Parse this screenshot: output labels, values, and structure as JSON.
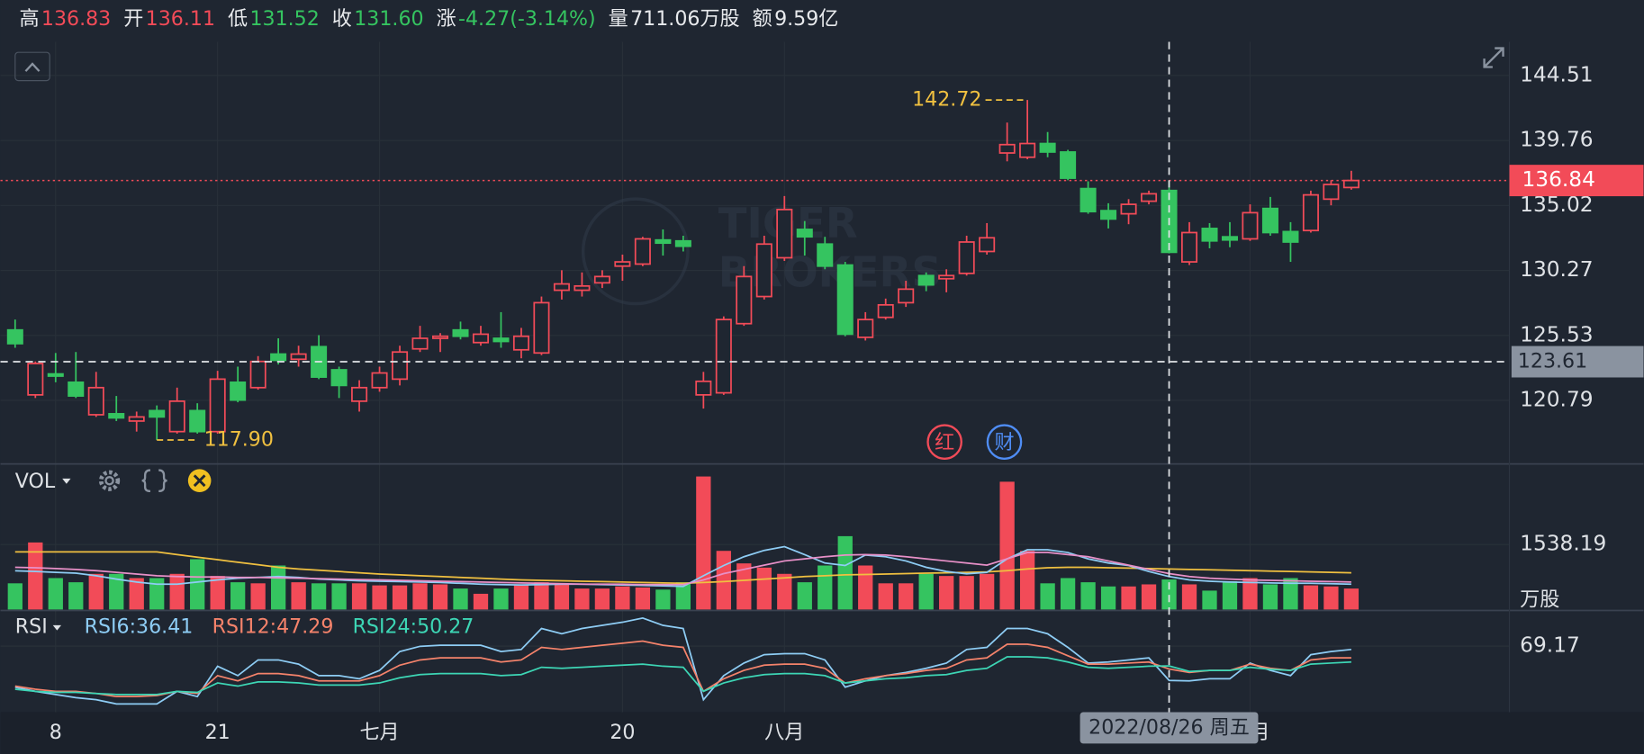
{
  "header": {
    "items": [
      {
        "label": "高",
        "value": "136.83",
        "color": "#f24b58"
      },
      {
        "label": "开",
        "value": "136.11",
        "color": "#f24b58"
      },
      {
        "label": "低",
        "value": "131.52",
        "color": "#35c460"
      },
      {
        "label": "收",
        "value": "131.60",
        "color": "#35c460"
      },
      {
        "label": "涨",
        "value": "-4.27(-3.14%)",
        "color": "#35c460"
      },
      {
        "label": "量",
        "value": "711.06万股",
        "color": "#e8eaed"
      },
      {
        "label": "额",
        "value": "9.59亿",
        "color": "#e8eaed"
      }
    ]
  },
  "chart_data": [
    {
      "type": "candlestick",
      "categories": [
        null,
        null,
        "8",
        null,
        null,
        null,
        null,
        null,
        null,
        null,
        "21",
        null,
        null,
        null,
        null,
        null,
        null,
        null,
        "七月",
        null,
        null,
        null,
        null,
        null,
        null,
        null,
        null,
        null,
        null,
        null,
        "20",
        null,
        null,
        null,
        null,
        null,
        null,
        null,
        "八月",
        null,
        null,
        null,
        null,
        null,
        null,
        null,
        null,
        null,
        null,
        null,
        null,
        null,
        null,
        null,
        null,
        null,
        null,
        null,
        null,
        null,
        null,
        "九月",
        null,
        null,
        null,
        null,
        null
      ],
      "open": [
        125.93,
        121.19,
        122.72,
        122.11,
        119.74,
        119.81,
        119.28,
        120.04,
        118.51,
        120.04,
        118.51,
        122.11,
        121.72,
        124.17,
        123.79,
        124.71,
        123.02,
        120.73,
        121.72,
        122.34,
        124.55,
        125.32,
        125.93,
        125.01,
        125.32,
        124.48,
        124.25,
        128.83,
        128.83,
        129.37,
        130.59,
        130.74,
        132.5,
        132.43,
        121.19,
        121.34,
        126.39,
        128.37,
        131.2,
        133.27,
        132.2,
        130.67,
        125.39,
        126.85,
        127.92,
        129.9,
        129.67,
        130.06,
        131.66,
        138.85,
        138.54,
        139.54,
        138.92,
        136.25,
        134.64,
        134.41,
        135.33,
        136.11,
        130.9,
        133.34,
        132.73,
        132.58,
        134.8,
        133.11,
        133.19,
        135.48,
        136.33
      ],
      "high": [
        126.69,
        123.63,
        124.25,
        124.32,
        122.87,
        121.11,
        119.97,
        120.42,
        121.72,
        120.58,
        122.95,
        123.25,
        124.02,
        125.32,
        124.78,
        125.55,
        123.25,
        122.26,
        123.25,
        124.78,
        126.23,
        125.7,
        126.54,
        126.23,
        127.23,
        126.08,
        128.37,
        130.29,
        130.13,
        130.29,
        131.43,
        132.73,
        133.27,
        132.81,
        122.87,
        126.92,
        130.59,
        132.81,
        135.71,
        133.88,
        132.73,
        130.9,
        127.23,
        128.22,
        129.52,
        130.13,
        130.36,
        132.81,
        133.73,
        141.07,
        142.72,
        140.38,
        139.08,
        136.78,
        135.18,
        135.48,
        136.1,
        136.83,
        133.8,
        133.73,
        133.8,
        135.1,
        135.64,
        133.8,
        136.1,
        136.86,
        137.55
      ],
      "low": [
        124.63,
        120.96,
        122.11,
        120.96,
        119.58,
        119.28,
        118.51,
        117.9,
        118.36,
        118.36,
        118.36,
        120.65,
        121.57,
        123.41,
        123.25,
        122.34,
        120.96,
        119.97,
        121.42,
        121.88,
        124.32,
        124.32,
        125.24,
        124.78,
        124.63,
        123.86,
        124.09,
        128.15,
        128.37,
        128.99,
        129.52,
        130.59,
        131.36,
        131.66,
        120.19,
        121.19,
        126.23,
        128.15,
        130.97,
        131.36,
        130.36,
        125.47,
        125.16,
        126.69,
        127.61,
        128.76,
        128.68,
        129.9,
        131.43,
        138.24,
        138.39,
        138.54,
        136.86,
        134.41,
        133.34,
        133.65,
        135.1,
        131.52,
        130.67,
        131.89,
        131.97,
        132.43,
        132.81,
        130.9,
        133.04,
        135.03,
        136.17
      ],
      "close": [
        124.93,
        123.48,
        122.56,
        121.11,
        121.72,
        119.51,
        119.58,
        119.58,
        120.73,
        118.51,
        122.34,
        120.81,
        123.63,
        123.71,
        124.17,
        122.49,
        121.88,
        121.72,
        122.79,
        124.32,
        125.32,
        125.47,
        125.47,
        125.62,
        125.09,
        125.47,
        127.92,
        129.29,
        129.14,
        129.83,
        130.9,
        132.58,
        132.27,
        132.04,
        122.18,
        126.69,
        129.83,
        132.2,
        134.72,
        132.73,
        130.59,
        125.62,
        126.69,
        127.76,
        128.91,
        129.22,
        129.9,
        132.35,
        132.66,
        139.46,
        139.54,
        138.92,
        137.01,
        134.57,
        134.03,
        135.1,
        135.87,
        131.6,
        133.04,
        132.43,
        132.5,
        134.49,
        133.04,
        132.35,
        135.79,
        136.55,
        136.84
      ],
      "up_color": "#f24b58",
      "down_color": "#35c460",
      "ylim": [
        116.15,
        146.96
      ],
      "yticks": [
        144.51,
        139.76,
        135.02,
        130.27,
        125.53,
        120.79
      ],
      "annotations": [
        {
          "text": "142.72"
        },
        {
          "text": "117.90"
        }
      ],
      "last_price": 136.84,
      "crosshair_price": 123.61,
      "crosshair_label": "2022/08/26 周五",
      "markers": [
        "红",
        "财"
      ],
      "watermark": [
        "TIGER",
        "BROKERS"
      ]
    },
    {
      "type": "bar",
      "title": "VOL",
      "unit": "万股",
      "values": [
        620,
        1588,
        744,
        645,
        844,
        844,
        744,
        744,
        844,
        1191,
        794,
        645,
        620,
        1042,
        645,
        620,
        620,
        620,
        571,
        571,
        620,
        595,
        496,
        372,
        496,
        595,
        645,
        620,
        496,
        496,
        546,
        521,
        471,
        645,
        3151,
        1389,
        1092,
        992,
        844,
        645,
        1042,
        1737,
        1042,
        620,
        620,
        844,
        794,
        794,
        844,
        3027,
        1389,
        620,
        744,
        645,
        546,
        546,
        595,
        711.06,
        595,
        447,
        670,
        744,
        595,
        744,
        571,
        546,
        496
      ],
      "lines": [
        {
          "color": "#f0c040",
          "values": [
            1365,
            1365,
            1365,
            1365,
            1365,
            1365,
            1365,
            1365,
            1300,
            1240,
            1180,
            1120,
            1060,
            1000,
            960,
            930,
            900,
            870,
            840,
            820,
            800,
            780,
            760,
            740,
            720,
            700,
            690,
            680,
            670,
            660,
            650,
            640,
            630,
            620,
            640,
            660,
            690,
            720,
            750,
            780,
            800,
            820,
            830,
            840,
            850,
            860,
            870,
            880,
            890,
            920,
            960,
            990,
            1000,
            1000,
            990,
            980,
            970,
            960,
            950,
            940,
            930,
            920,
            910,
            900,
            890,
            880,
            870
          ]
        },
        {
          "color": "#8ecdf5",
          "values": [
            918,
            900,
            880,
            860,
            800,
            720,
            650,
            600,
            600,
            650,
            700,
            740,
            760,
            780,
            760,
            720,
            700,
            680,
            670,
            660,
            650,
            640,
            620,
            600,
            590,
            580,
            590,
            600,
            600,
            590,
            580,
            570,
            560,
            546,
            800,
            1042,
            1250,
            1400,
            1489,
            1300,
            1100,
            1042,
            1290,
            1250,
            1150,
            1000,
            900,
            844,
            880,
            1200,
            1414,
            1414,
            1350,
            1200,
            1100,
            1042,
            900,
            780,
            700,
            670,
            650,
            640,
            630,
            620,
            620,
            610,
            600
          ]
        },
        {
          "color": "#e890c8",
          "values": [
            1000,
            990,
            970,
            950,
            920,
            880,
            840,
            800,
            780,
            770,
            770,
            760,
            760,
            750,
            740,
            730,
            720,
            710,
            700,
            690,
            680,
            670,
            660,
            650,
            640,
            630,
            620,
            610,
            600,
            600,
            600,
            590,
            590,
            590,
            700,
            850,
            950,
            1050,
            1150,
            1200,
            1250,
            1290,
            1300,
            1290,
            1250,
            1200,
            1150,
            1100,
            1050,
            1200,
            1350,
            1350,
            1300,
            1250,
            1150,
            1050,
            950,
            850,
            780,
            740,
            720,
            700,
            690,
            680,
            670,
            660,
            650
          ]
        }
      ],
      "ylim": [
        0,
        3424
      ],
      "yticks": [
        1538.19
      ]
    },
    {
      "type": "line",
      "title": "RSI",
      "series": [
        {
          "name": "RSI6:36.41",
          "color": "#8ecdf5",
          "values": [
            30,
            26,
            23,
            20,
            18,
            14,
            14,
            14,
            26,
            21,
            50,
            41,
            56,
            56,
            52,
            41,
            41,
            38,
            46,
            64,
            69,
            70,
            70,
            70,
            64,
            66,
            86,
            81,
            86,
            89,
            92,
            96,
            89,
            86,
            18,
            41,
            53,
            61,
            62,
            62,
            56,
            30,
            36,
            41,
            44,
            48,
            53,
            66,
            68,
            86,
            86,
            81,
            68,
            53,
            54,
            56,
            58,
            36.41,
            36,
            38,
            38,
            53,
            46,
            41,
            61,
            64,
            66
          ]
        },
        {
          "name": "RSI12:47.29",
          "color": "#f5836b",
          "values": [
            31,
            28,
            26,
            26,
            24,
            21,
            21,
            22,
            26,
            24,
            41,
            36,
            43,
            43,
            41,
            36,
            36,
            36,
            41,
            51,
            56,
            58,
            58,
            58,
            54,
            56,
            68,
            66,
            68,
            70,
            72,
            74,
            70,
            68,
            26,
            38,
            46,
            51,
            52,
            52,
            48,
            34,
            38,
            41,
            43,
            46,
            48,
            56,
            58,
            71,
            71,
            68,
            60,
            52,
            52,
            53,
            54,
            47.29,
            44,
            46,
            46,
            52,
            48,
            46,
            56,
            58,
            58
          ]
        },
        {
          "name": "RSI24:50.27",
          "color": "#3dd6b5",
          "values": [
            28,
            26,
            25,
            25,
            24,
            23,
            23,
            23,
            26,
            25,
            34,
            31,
            35,
            35,
            34,
            32,
            32,
            32,
            34,
            39,
            42,
            43,
            43,
            43,
            41,
            42,
            49,
            48,
            49,
            50,
            51,
            52,
            50,
            49,
            26,
            34,
            39,
            42,
            43,
            43,
            41,
            34,
            36,
            38,
            39,
            41,
            42,
            46,
            48,
            59,
            59,
            58,
            54,
            49,
            48,
            49,
            50,
            50.27,
            45,
            46,
            46,
            49,
            47,
            46,
            52,
            53,
            54
          ]
        }
      ],
      "ylim": [
        6.17,
        102.17
      ],
      "yticks": [
        69.17
      ]
    }
  ]
}
